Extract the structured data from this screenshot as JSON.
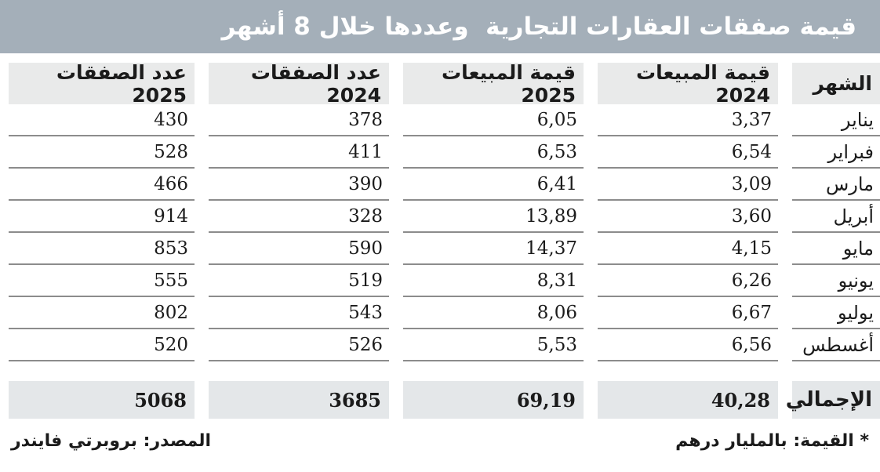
{
  "title": "قيمة صفقات العقارات التجارية  وعددها خلال 8 أشهر",
  "table": {
    "headers": {
      "month": "الشهر",
      "sales_2024": "قيمة المبيعات 2024",
      "sales_2025": "قيمة المبيعات 2025",
      "deals_2024": "عدد الصفقات 2024",
      "deals_2025": "عدد الصفقات 2025"
    },
    "rows": [
      {
        "month": "يناير",
        "sales_2024": "3,37",
        "sales_2025": "6,05",
        "deals_2024": "378",
        "deals_2025": "430"
      },
      {
        "month": "فبراير",
        "sales_2024": "6,54",
        "sales_2025": "6,53",
        "deals_2024": "411",
        "deals_2025": "528"
      },
      {
        "month": "مارس",
        "sales_2024": "3,09",
        "sales_2025": "6,41",
        "deals_2024": "390",
        "deals_2025": "466"
      },
      {
        "month": "أبريل",
        "sales_2024": "3,60",
        "sales_2025": "13,89",
        "deals_2024": "328",
        "deals_2025": "914"
      },
      {
        "month": "مايو",
        "sales_2024": "4,15",
        "sales_2025": "14,37",
        "deals_2024": "590",
        "deals_2025": "853"
      },
      {
        "month": "يونيو",
        "sales_2024": "6,26",
        "sales_2025": "8,31",
        "deals_2024": "519",
        "deals_2025": "555"
      },
      {
        "month": "يوليو",
        "sales_2024": "6,67",
        "sales_2025": "8,06",
        "deals_2024": "543",
        "deals_2025": "802"
      },
      {
        "month": "أغسطس",
        "sales_2024": "6,56",
        "sales_2025": "5,53",
        "deals_2024": "526",
        "deals_2025": "520"
      }
    ],
    "totals": {
      "label": "الإجمالي",
      "sales_2024": "40,28",
      "sales_2025": "69,19",
      "deals_2024": "3685",
      "deals_2025": "5068"
    }
  },
  "footnote_value": "* القيمة: بالمليار درهم",
  "source": "المصدر: بروبرتي فايندر",
  "colors": {
    "title_bg": "#a4afb9",
    "header_bg": "#e9eaea",
    "totals_bg": "#e4e7e9",
    "row_line": "#8c8c8c",
    "title_text": "#ffffff",
    "body_text": "#1b1b1b"
  },
  "chart_data": {
    "type": "table",
    "title": "قيمة صفقات العقارات التجارية وعددها خلال 8 أشهر",
    "columns": [
      "الشهر",
      "قيمة المبيعات 2024",
      "قيمة المبيعات 2025",
      "عدد الصفقات 2024",
      "عدد الصفقات 2025"
    ],
    "categories": [
      "يناير",
      "فبراير",
      "مارس",
      "أبريل",
      "مايو",
      "يونيو",
      "يوليو",
      "أغسطس"
    ],
    "series": [
      {
        "name": "قيمة المبيعات 2024",
        "values": [
          3.37,
          6.54,
          3.09,
          3.6,
          4.15,
          6.26,
          6.67,
          6.56
        ],
        "total": 40.28
      },
      {
        "name": "قيمة المبيعات 2025",
        "values": [
          6.05,
          6.53,
          6.41,
          13.89,
          14.37,
          8.31,
          8.06,
          5.53
        ],
        "total": 69.19
      },
      {
        "name": "عدد الصفقات 2024",
        "values": [
          378,
          411,
          390,
          328,
          590,
          519,
          543,
          526
        ],
        "total": 3685
      },
      {
        "name": "عدد الصفقات 2025",
        "values": [
          430,
          528,
          466,
          914,
          853,
          555,
          802,
          520
        ],
        "total": 5068
      }
    ],
    "totals_row_label": "الإجمالي",
    "notes": [
      "* القيمة: بالمليار درهم",
      "المصدر: بروبرتي فايندر"
    ],
    "value_unit": "مليار درهم"
  }
}
